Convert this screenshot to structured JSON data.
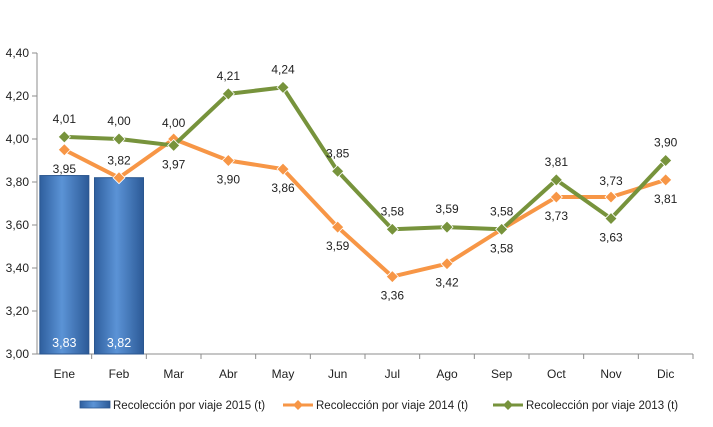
{
  "chart_data": {
    "type": "bar+line",
    "categories": [
      "Ene",
      "Feb",
      "Mar",
      "Abr",
      "May",
      "Jun",
      "Jul",
      "Ago",
      "Sep",
      "Oct",
      "Nov",
      "Dic"
    ],
    "ylim": [
      3.0,
      4.4
    ],
    "yticks": [
      "3,00",
      "3,20",
      "3,40",
      "3,60",
      "3,80",
      "4,00",
      "4,20",
      "4,40"
    ],
    "series": [
      {
        "name": "Recolección por viaje 2015 (t)",
        "type": "bar",
        "color": "#3a74bd",
        "values": [
          3.83,
          3.82,
          null,
          null,
          null,
          null,
          null,
          null,
          null,
          null,
          null,
          null
        ],
        "labels": [
          "3,83",
          "3,82",
          "",
          "",
          "",
          "",
          "",
          "",
          "",
          "",
          "",
          ""
        ]
      },
      {
        "name": "Recolección por viaje 2014 (t)",
        "type": "line",
        "color": "#f79646",
        "values": [
          3.95,
          3.82,
          4.0,
          3.9,
          3.86,
          3.59,
          3.36,
          3.42,
          3.58,
          3.73,
          3.73,
          3.81
        ],
        "labels": [
          "3,95",
          "3,82",
          "4,00",
          "3,90",
          "3,86",
          "3,59",
          "3,36",
          "3,42",
          "3,58",
          "3,73",
          "3,73",
          "3,81"
        ]
      },
      {
        "name": "Recolección por viaje 2013 (t)",
        "type": "line",
        "color": "#77933c",
        "values": [
          4.01,
          4.0,
          3.97,
          4.21,
          4.24,
          3.85,
          3.58,
          3.59,
          3.58,
          3.81,
          3.63,
          3.9
        ],
        "labels": [
          "4,01",
          "4,00",
          "3,97",
          "4,21",
          "4,24",
          "3,85",
          "3,58",
          "3,59",
          "3,58",
          "3,81",
          "3,63",
          "3,90"
        ]
      }
    ],
    "legend_position": "bottom",
    "grid": false
  }
}
